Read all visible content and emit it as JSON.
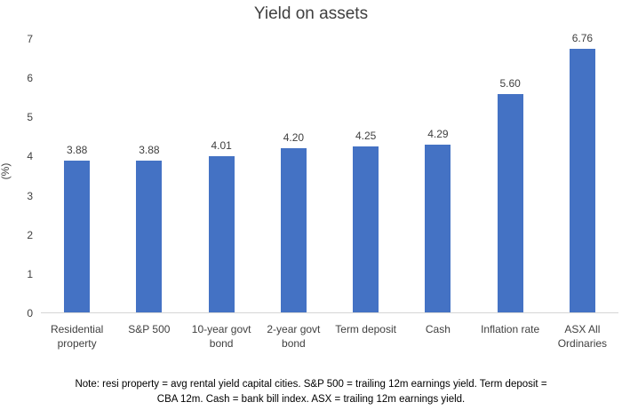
{
  "chart_data": {
    "type": "bar",
    "title": "Yield on assets",
    "xlabel": "",
    "ylabel": "(%)",
    "categories": [
      "Residential property",
      "S&P 500",
      "10-year govt bond",
      "2-year govt bond",
      "Term deposit",
      "Cash",
      "Inflation rate",
      "ASX All Ordinaries"
    ],
    "values": [
      3.88,
      3.88,
      4.01,
      4.2,
      4.25,
      4.29,
      5.6,
      6.76
    ],
    "data_labels": [
      "3.88",
      "3.88",
      "4.01",
      "4.20",
      "4.25",
      "4.29",
      "5.60",
      "6.76"
    ],
    "ylim": [
      0,
      7
    ],
    "ytick_values": [
      0,
      1,
      2,
      3,
      4,
      5,
      6,
      7
    ],
    "ytick_labels": [
      "0",
      "1",
      "2",
      "3",
      "4",
      "5",
      "6",
      "7"
    ],
    "grid": false,
    "legend": false,
    "bar_color": "#4472C4",
    "axis_line_color": "#d6d6d6",
    "text_color": "#404040"
  },
  "note": {
    "lines": [
      "Note: resi property = avg rental yield capital cities. S&P 500 = trailing 12m earnings yield. Term deposit =",
      "CBA 12m. Cash = bank bill index. ASX = trailing 12m earnings yield."
    ]
  }
}
